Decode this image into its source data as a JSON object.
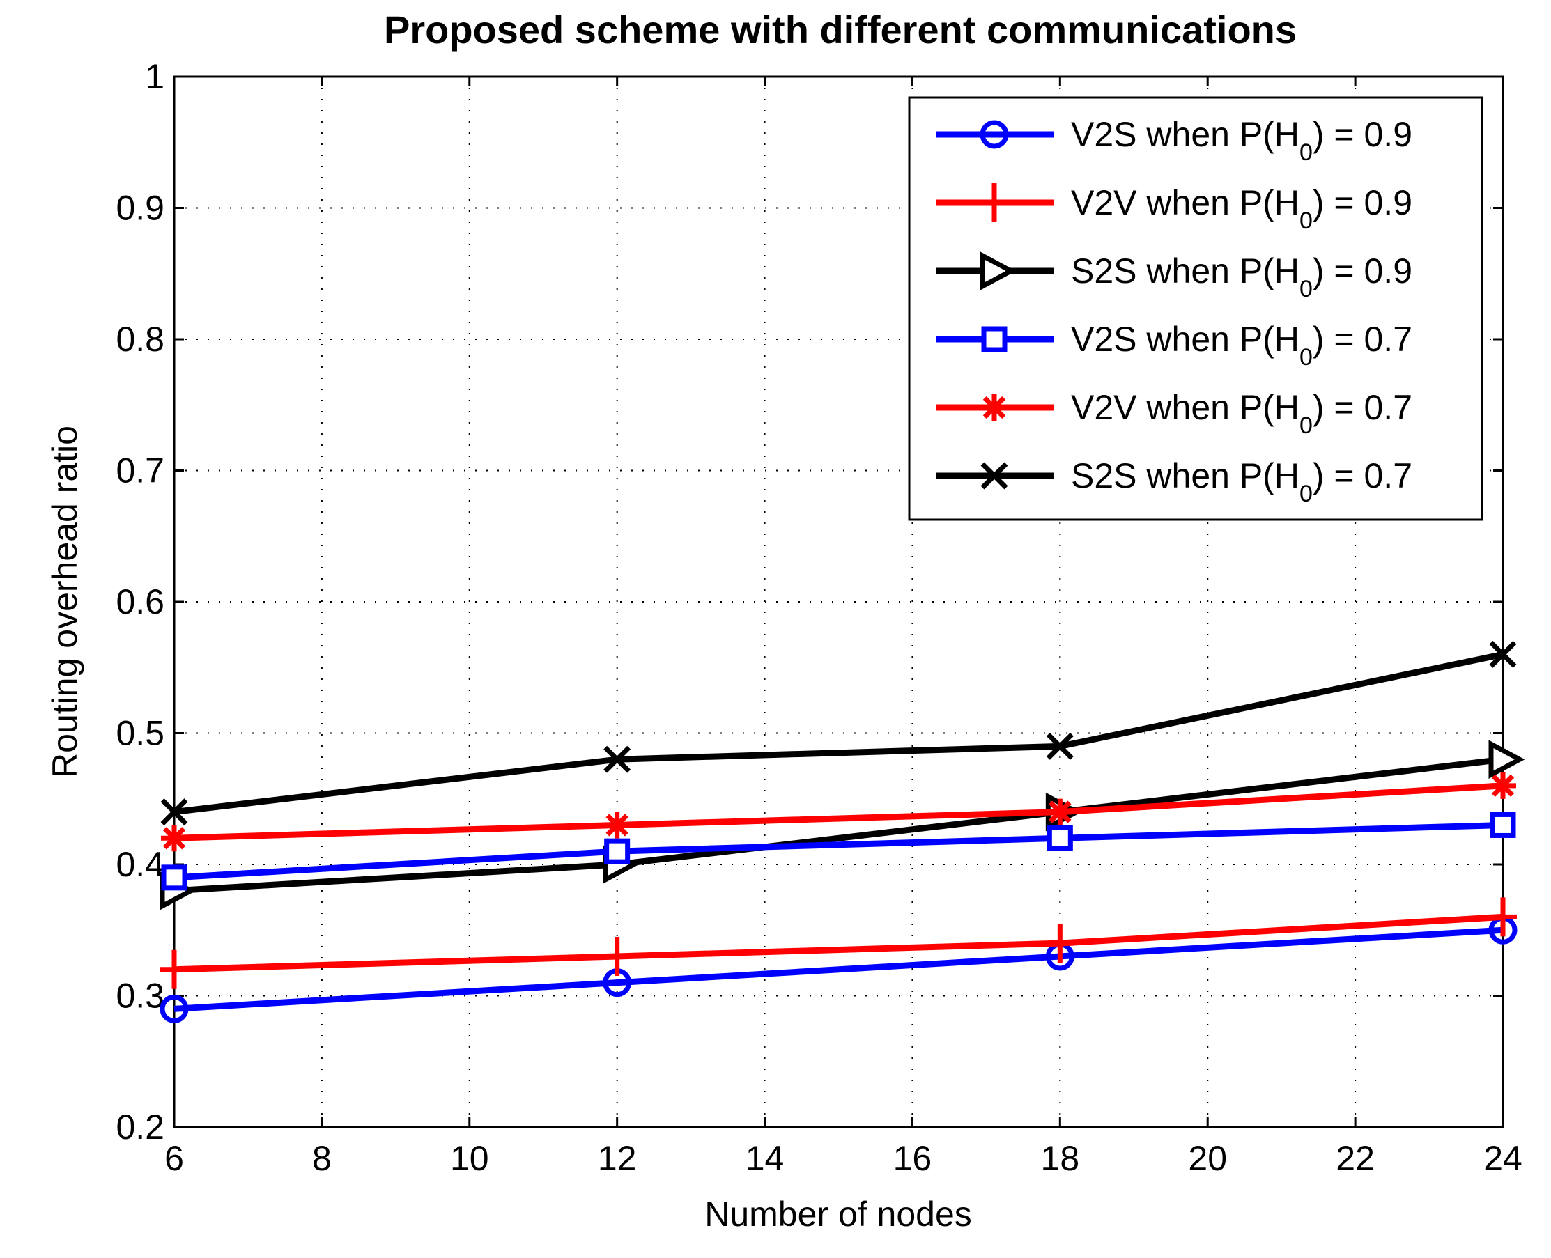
{
  "chart_data": {
    "type": "line",
    "title": "Proposed scheme with different communications",
    "xlabel": "Number of nodes",
    "ylabel": "Routing overhead ratio",
    "xlim": [
      6,
      24
    ],
    "ylim": [
      0.2,
      1
    ],
    "xticks": [
      6,
      8,
      10,
      12,
      14,
      16,
      18,
      20,
      22,
      24
    ],
    "yticks": [
      0.2,
      0.3,
      0.4,
      0.5,
      0.6,
      0.7,
      0.8,
      0.9,
      1
    ],
    "ytick_labels": [
      "0.2",
      "0.3",
      "0.4",
      "0.5",
      "0.6",
      "0.7",
      "0.8",
      "0.9",
      "1"
    ],
    "grid": true,
    "legend_position": "top-right",
    "x": [
      6,
      12,
      18,
      24
    ],
    "series": [
      {
        "name": "V2S when P(H0) = 0.9",
        "label_pre": "V2S when P(H",
        "label_sub": "0",
        "label_post": ") = 0.9",
        "color": "#0000ff",
        "marker": "circle",
        "values": [
          0.29,
          0.31,
          0.33,
          0.35
        ]
      },
      {
        "name": "V2V when P(H0) = 0.9",
        "label_pre": "V2V when P(H",
        "label_sub": "0",
        "label_post": ") = 0.9",
        "color": "#ff0000",
        "marker": "plus",
        "values": [
          0.32,
          0.33,
          0.34,
          0.36
        ]
      },
      {
        "name": "S2S when P(H0) = 0.9",
        "label_pre": "S2S when P(H",
        "label_sub": "0",
        "label_post": ") = 0.9",
        "color": "#000000",
        "marker": "triangle-right",
        "values": [
          0.38,
          0.4,
          0.44,
          0.48
        ]
      },
      {
        "name": "V2S when P(H0) = 0.7",
        "label_pre": "V2S when P(H",
        "label_sub": "0",
        "label_post": ") = 0.7",
        "color": "#0000ff",
        "marker": "square",
        "values": [
          0.39,
          0.41,
          0.42,
          0.43
        ]
      },
      {
        "name": "V2V when P(H0) = 0.7",
        "label_pre": "V2V when P(H",
        "label_sub": "0",
        "label_post": ") = 0.7",
        "color": "#ff0000",
        "marker": "asterisk",
        "values": [
          0.42,
          0.43,
          0.44,
          0.46
        ]
      },
      {
        "name": "S2S when P(H0) = 0.7",
        "label_pre": "S2S when P(H",
        "label_sub": "0",
        "label_post": ") = 0.7",
        "color": "#000000",
        "marker": "x",
        "values": [
          0.44,
          0.48,
          0.49,
          0.56
        ]
      }
    ]
  }
}
